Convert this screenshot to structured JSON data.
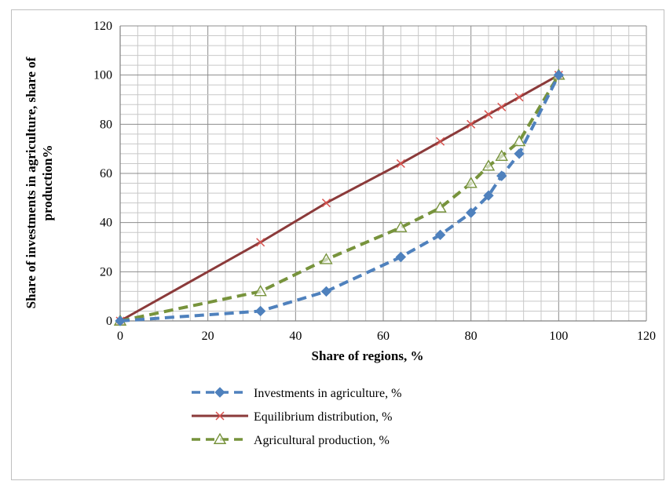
{
  "chart_data": {
    "type": "line",
    "title": "",
    "xlabel": "Share of regions, %",
    "ylabel_lines": [
      "Share of investments in agriculture, share of",
      "production%"
    ],
    "xlim": [
      0,
      120
    ],
    "ylim": [
      0,
      120
    ],
    "xticks": [
      "0",
      "20",
      "40",
      "60",
      "80",
      "100",
      "120"
    ],
    "yticks": [
      "0",
      "20",
      "40",
      "60",
      "80",
      "100",
      "120"
    ],
    "grid": true,
    "legend_position": "bottom",
    "series": [
      {
        "name": "Investments in agriculture, %",
        "color": "#4f81bd",
        "line_style": "dashed",
        "marker": "diamond",
        "x": [
          0,
          32,
          47,
          64,
          73,
          80,
          84,
          87,
          91,
          100
        ],
        "y": [
          0,
          4,
          12,
          26,
          35,
          44,
          51,
          59,
          68,
          100
        ]
      },
      {
        "name": "Equilibrium distribution, %",
        "color": "#8b3a3a",
        "line_style": "solid",
        "marker": "x",
        "x": [
          0,
          32,
          47,
          64,
          73,
          80,
          84,
          87,
          91,
          100
        ],
        "y": [
          0,
          32,
          48,
          64,
          73,
          80,
          84,
          87,
          91,
          100
        ]
      },
      {
        "name": "Agricultural production, %",
        "color": "#77933c",
        "line_style": "dashed",
        "marker": "triangle-open",
        "x": [
          0,
          32,
          47,
          64,
          73,
          80,
          84,
          87,
          91,
          100
        ],
        "y": [
          0,
          12,
          25,
          38,
          46,
          56,
          63,
          67,
          73,
          100
        ]
      }
    ]
  }
}
